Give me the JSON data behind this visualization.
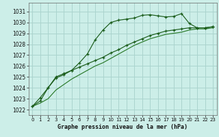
{
  "title": "Graphe pression niveau de la mer (hPa)",
  "bg_color": "#cceee8",
  "grid_color": "#aad4ce",
  "line_color1": "#1a5c1a",
  "line_color2": "#1a5c1a",
  "line_color3": "#2a7a2a",
  "xlim": [
    -0.5,
    23.5
  ],
  "ylim": [
    1021.5,
    1031.8
  ],
  "xticks": [
    0,
    1,
    2,
    3,
    4,
    5,
    6,
    7,
    8,
    9,
    10,
    11,
    12,
    13,
    14,
    15,
    16,
    17,
    18,
    19,
    20,
    21,
    22,
    23
  ],
  "yticks": [
    1022,
    1023,
    1024,
    1025,
    1026,
    1027,
    1028,
    1029,
    1030,
    1031
  ],
  "series1_x": [
    0,
    1,
    2,
    3,
    4,
    5,
    6,
    7,
    8,
    9,
    10,
    11,
    12,
    13,
    14,
    15,
    16,
    17,
    18,
    19,
    20,
    21,
    22,
    23
  ],
  "series1_y": [
    1022.3,
    1023.1,
    1024.0,
    1024.9,
    1025.2,
    1025.6,
    1026.3,
    1027.1,
    1028.4,
    1029.3,
    1030.0,
    1030.2,
    1030.3,
    1030.4,
    1030.65,
    1030.7,
    1030.6,
    1030.5,
    1030.55,
    1030.8,
    1029.9,
    1029.5,
    1029.5,
    1029.6
  ],
  "series2_x": [
    0,
    1,
    2,
    3,
    4,
    5,
    6,
    7,
    8,
    9,
    10,
    11,
    12,
    13,
    14,
    15,
    16,
    17,
    18,
    19,
    20,
    21,
    22,
    23
  ],
  "series2_y": [
    1022.3,
    1022.8,
    1024.0,
    1025.0,
    1025.3,
    1025.6,
    1025.9,
    1026.2,
    1026.5,
    1026.8,
    1027.2,
    1027.5,
    1027.9,
    1028.2,
    1028.5,
    1028.8,
    1029.0,
    1029.2,
    1029.3,
    1029.4,
    1029.5,
    1029.5,
    1029.5,
    1029.6
  ],
  "series3_x": [
    0,
    1,
    2,
    3,
    4,
    5,
    6,
    7,
    8,
    9,
    10,
    11,
    12,
    13,
    14,
    15,
    16,
    17,
    18,
    19,
    20,
    21,
    22,
    23
  ],
  "series3_y": [
    1022.3,
    1022.6,
    1023.0,
    1023.8,
    1024.3,
    1024.8,
    1025.2,
    1025.6,
    1026.0,
    1026.3,
    1026.7,
    1027.1,
    1027.5,
    1027.9,
    1028.2,
    1028.5,
    1028.7,
    1028.9,
    1029.0,
    1029.1,
    1029.3,
    1029.4,
    1029.4,
    1029.5
  ]
}
